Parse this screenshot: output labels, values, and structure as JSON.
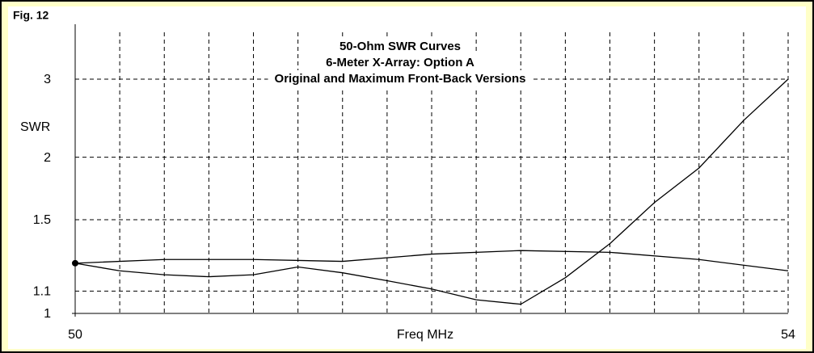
{
  "chart_data": {
    "type": "line",
    "figure_label": "Fig. 12",
    "title": [
      "50-Ohm SWR Curves",
      "6-Meter X-Array:  Option A",
      "Original and Maximum Front-Back Versions"
    ],
    "x_label": "Freq MHz",
    "y_label": "SWR",
    "y_scale": "reflection",
    "xlim": [
      50,
      54
    ],
    "xticks": [
      50,
      54
    ],
    "xgrid": [
      50.25,
      50.5,
      50.75,
      51,
      51.25,
      51.5,
      51.75,
      52,
      52.25,
      52.5,
      52.75,
      53,
      53.25,
      53.5,
      53.75
    ],
    "ylim": [
      1,
      4
    ],
    "yticks": [
      1,
      1.1,
      1.5,
      2,
      3
    ],
    "grid": true,
    "series": [
      {
        "color": "#000000",
        "x": [
          50,
          50.25,
          50.5,
          50.75,
          51,
          51.25,
          51.5,
          51.75,
          52,
          52.25,
          52.5,
          52.75,
          53,
          53.25,
          53.5,
          53.75,
          54
        ],
        "values": [
          1.24,
          1.2,
          1.18,
          1.17,
          1.18,
          1.22,
          1.19,
          1.15,
          1.11,
          1.06,
          1.04,
          1.165,
          1.35,
          1.62,
          1.9,
          2.4,
          3.0
        ]
      },
      {
        "color": "#000000",
        "x": [
          50,
          50.5,
          51,
          51.5,
          52,
          52.5,
          53,
          53.5,
          54
        ],
        "values": [
          1.24,
          1.26,
          1.26,
          1.25,
          1.29,
          1.31,
          1.3,
          1.26,
          1.2
        ]
      }
    ]
  }
}
